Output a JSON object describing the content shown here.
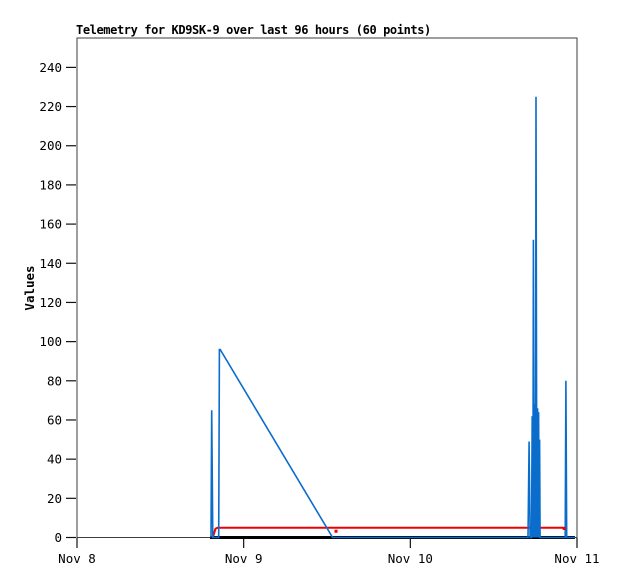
{
  "chart_data": {
    "type": "line",
    "title": "Telemetry for KD9SK-9 over last 96 hours (60 points)",
    "ylabel": "Values",
    "xlabel": "",
    "grid": false,
    "legend": "none",
    "background": "#ffffff",
    "frame_color": "#3d3d3d",
    "tick_color": "#111111",
    "x_axis": {
      "unit": "hours since Nov 8 00:00",
      "range": [
        0,
        72
      ],
      "ticks": [
        {
          "t": 0,
          "label": "Nov 8"
        },
        {
          "t": 24,
          "label": "Nov 9"
        },
        {
          "t": 48,
          "label": "Nov 10"
        },
        {
          "t": 72,
          "label": "Nov 11"
        }
      ]
    },
    "y_axis": {
      "range": [
        0,
        255
      ],
      "ticks": [
        0,
        20,
        40,
        60,
        80,
        100,
        120,
        140,
        160,
        180,
        200,
        220,
        240
      ]
    },
    "series": [
      {
        "name": "black-baseline",
        "color": "#000000",
        "width": 3,
        "points": [
          [
            19.15,
            0
          ],
          [
            71.7,
            0
          ]
        ]
      },
      {
        "name": "red-threshold",
        "color": "#f00000",
        "width": 2,
        "points": [
          [
            19.55,
            0
          ],
          [
            19.95,
            4.5
          ],
          [
            20.25,
            5
          ],
          [
            70.15,
            5
          ]
        ]
      },
      {
        "name": "blue-values",
        "color": "#0b6dcb",
        "width": 1.6,
        "points": [
          [
            19.3,
            0
          ],
          [
            19.4,
            65
          ],
          [
            19.55,
            0
          ],
          [
            20.4,
            0
          ],
          [
            20.5,
            96
          ],
          [
            20.62,
            96
          ],
          [
            36.8,
            0
          ],
          [
            64.95,
            0
          ],
          [
            65.1,
            49
          ],
          [
            65.25,
            0
          ],
          [
            65.45,
            0
          ],
          [
            65.55,
            62
          ],
          [
            65.65,
            0
          ],
          [
            65.72,
            152
          ],
          [
            65.8,
            65
          ],
          [
            65.88,
            0
          ],
          [
            65.95,
            68
          ],
          [
            66.03,
            0
          ],
          [
            66.1,
            225
          ],
          [
            66.18,
            65
          ],
          [
            66.25,
            0
          ],
          [
            66.32,
            66
          ],
          [
            66.4,
            0
          ],
          [
            66.47,
            64
          ],
          [
            66.55,
            0
          ],
          [
            66.62,
            50
          ],
          [
            66.68,
            0
          ],
          [
            70.3,
            0
          ],
          [
            70.4,
            80
          ],
          [
            70.52,
            0
          ],
          [
            71.7,
            0
          ]
        ]
      }
    ],
    "markers": [
      {
        "t": 37.3,
        "v": 3.2,
        "color": "#f00000",
        "size": 3
      },
      {
        "t": 70.15,
        "v": 4.6,
        "color": "#f00000",
        "size": 3
      }
    ]
  }
}
